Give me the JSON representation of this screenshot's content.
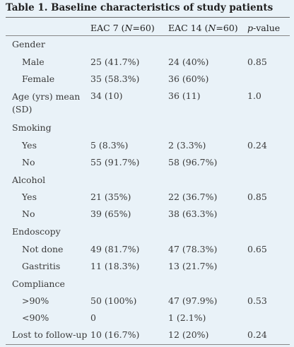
{
  "caption": "Table 1. Baseline characteristics of study patients",
  "columns": {
    "group1": "EAC 7 (",
    "group1_n": "N",
    "group1_rest": "=60)",
    "group2": "EAC 14 (",
    "group2_n": "N",
    "group2_rest": "=60)",
    "pvalue_p": "p",
    "pvalue_rest": "-value"
  },
  "rows": [
    {
      "label": "Gender",
      "indent": false,
      "c1": "",
      "c2": "",
      "p": ""
    },
    {
      "label": "Male",
      "indent": true,
      "c1": "25 (41.7%)",
      "c2": "24 (40%)",
      "p": "0.85"
    },
    {
      "label": "Female",
      "indent": true,
      "c1": "35 (58.3%)",
      "c2": "36 (60%)",
      "p": ""
    },
    {
      "label": "Age (yrs) mean (SD)",
      "indent": false,
      "c1": "34 (10)",
      "c2": "36 (11)",
      "p": "1.0"
    },
    {
      "label": "Smoking",
      "indent": false,
      "c1": "",
      "c2": "",
      "p": ""
    },
    {
      "label": "Yes",
      "indent": true,
      "c1": "5 (8.3%)",
      "c2": "2 (3.3%)",
      "p": "0.24"
    },
    {
      "label": "No",
      "indent": true,
      "c1": "55 (91.7%)",
      "c2": "58 (96.7%)",
      "p": ""
    },
    {
      "label": "Alcohol",
      "indent": false,
      "c1": "",
      "c2": "",
      "p": ""
    },
    {
      "label": "Yes",
      "indent": true,
      "c1": "21 (35%)",
      "c2": "22 (36.7%)",
      "p": "0.85"
    },
    {
      "label": "No",
      "indent": true,
      "c1": "39 (65%)",
      "c2": "38 (63.3%)",
      "p": ""
    },
    {
      "label": "Endoscopy",
      "indent": false,
      "c1": "",
      "c2": "",
      "p": ""
    },
    {
      "label": "Not done",
      "indent": true,
      "c1": "49 (81.7%)",
      "c2": "47 (78.3%)",
      "p": "0.65"
    },
    {
      "label": "Gastritis",
      "indent": true,
      "c1": "11 (18.3%)",
      "c2": "13 (21.7%)",
      "p": ""
    },
    {
      "label": "Compliance",
      "indent": false,
      "c1": "",
      "c2": "",
      "p": ""
    },
    {
      "label": ">90%",
      "indent": true,
      "c1": "50 (100%)",
      "c2": "47 (97.9%)",
      "p": "0.53"
    },
    {
      "label": "<90%",
      "indent": true,
      "c1": "0",
      "c2": "1 (2.1%)",
      "p": ""
    },
    {
      "label": "Lost to follow-up",
      "indent": false,
      "c1": "10 (16.7%)",
      "c2": "12 (20%)",
      "p": "0.24"
    }
  ]
}
